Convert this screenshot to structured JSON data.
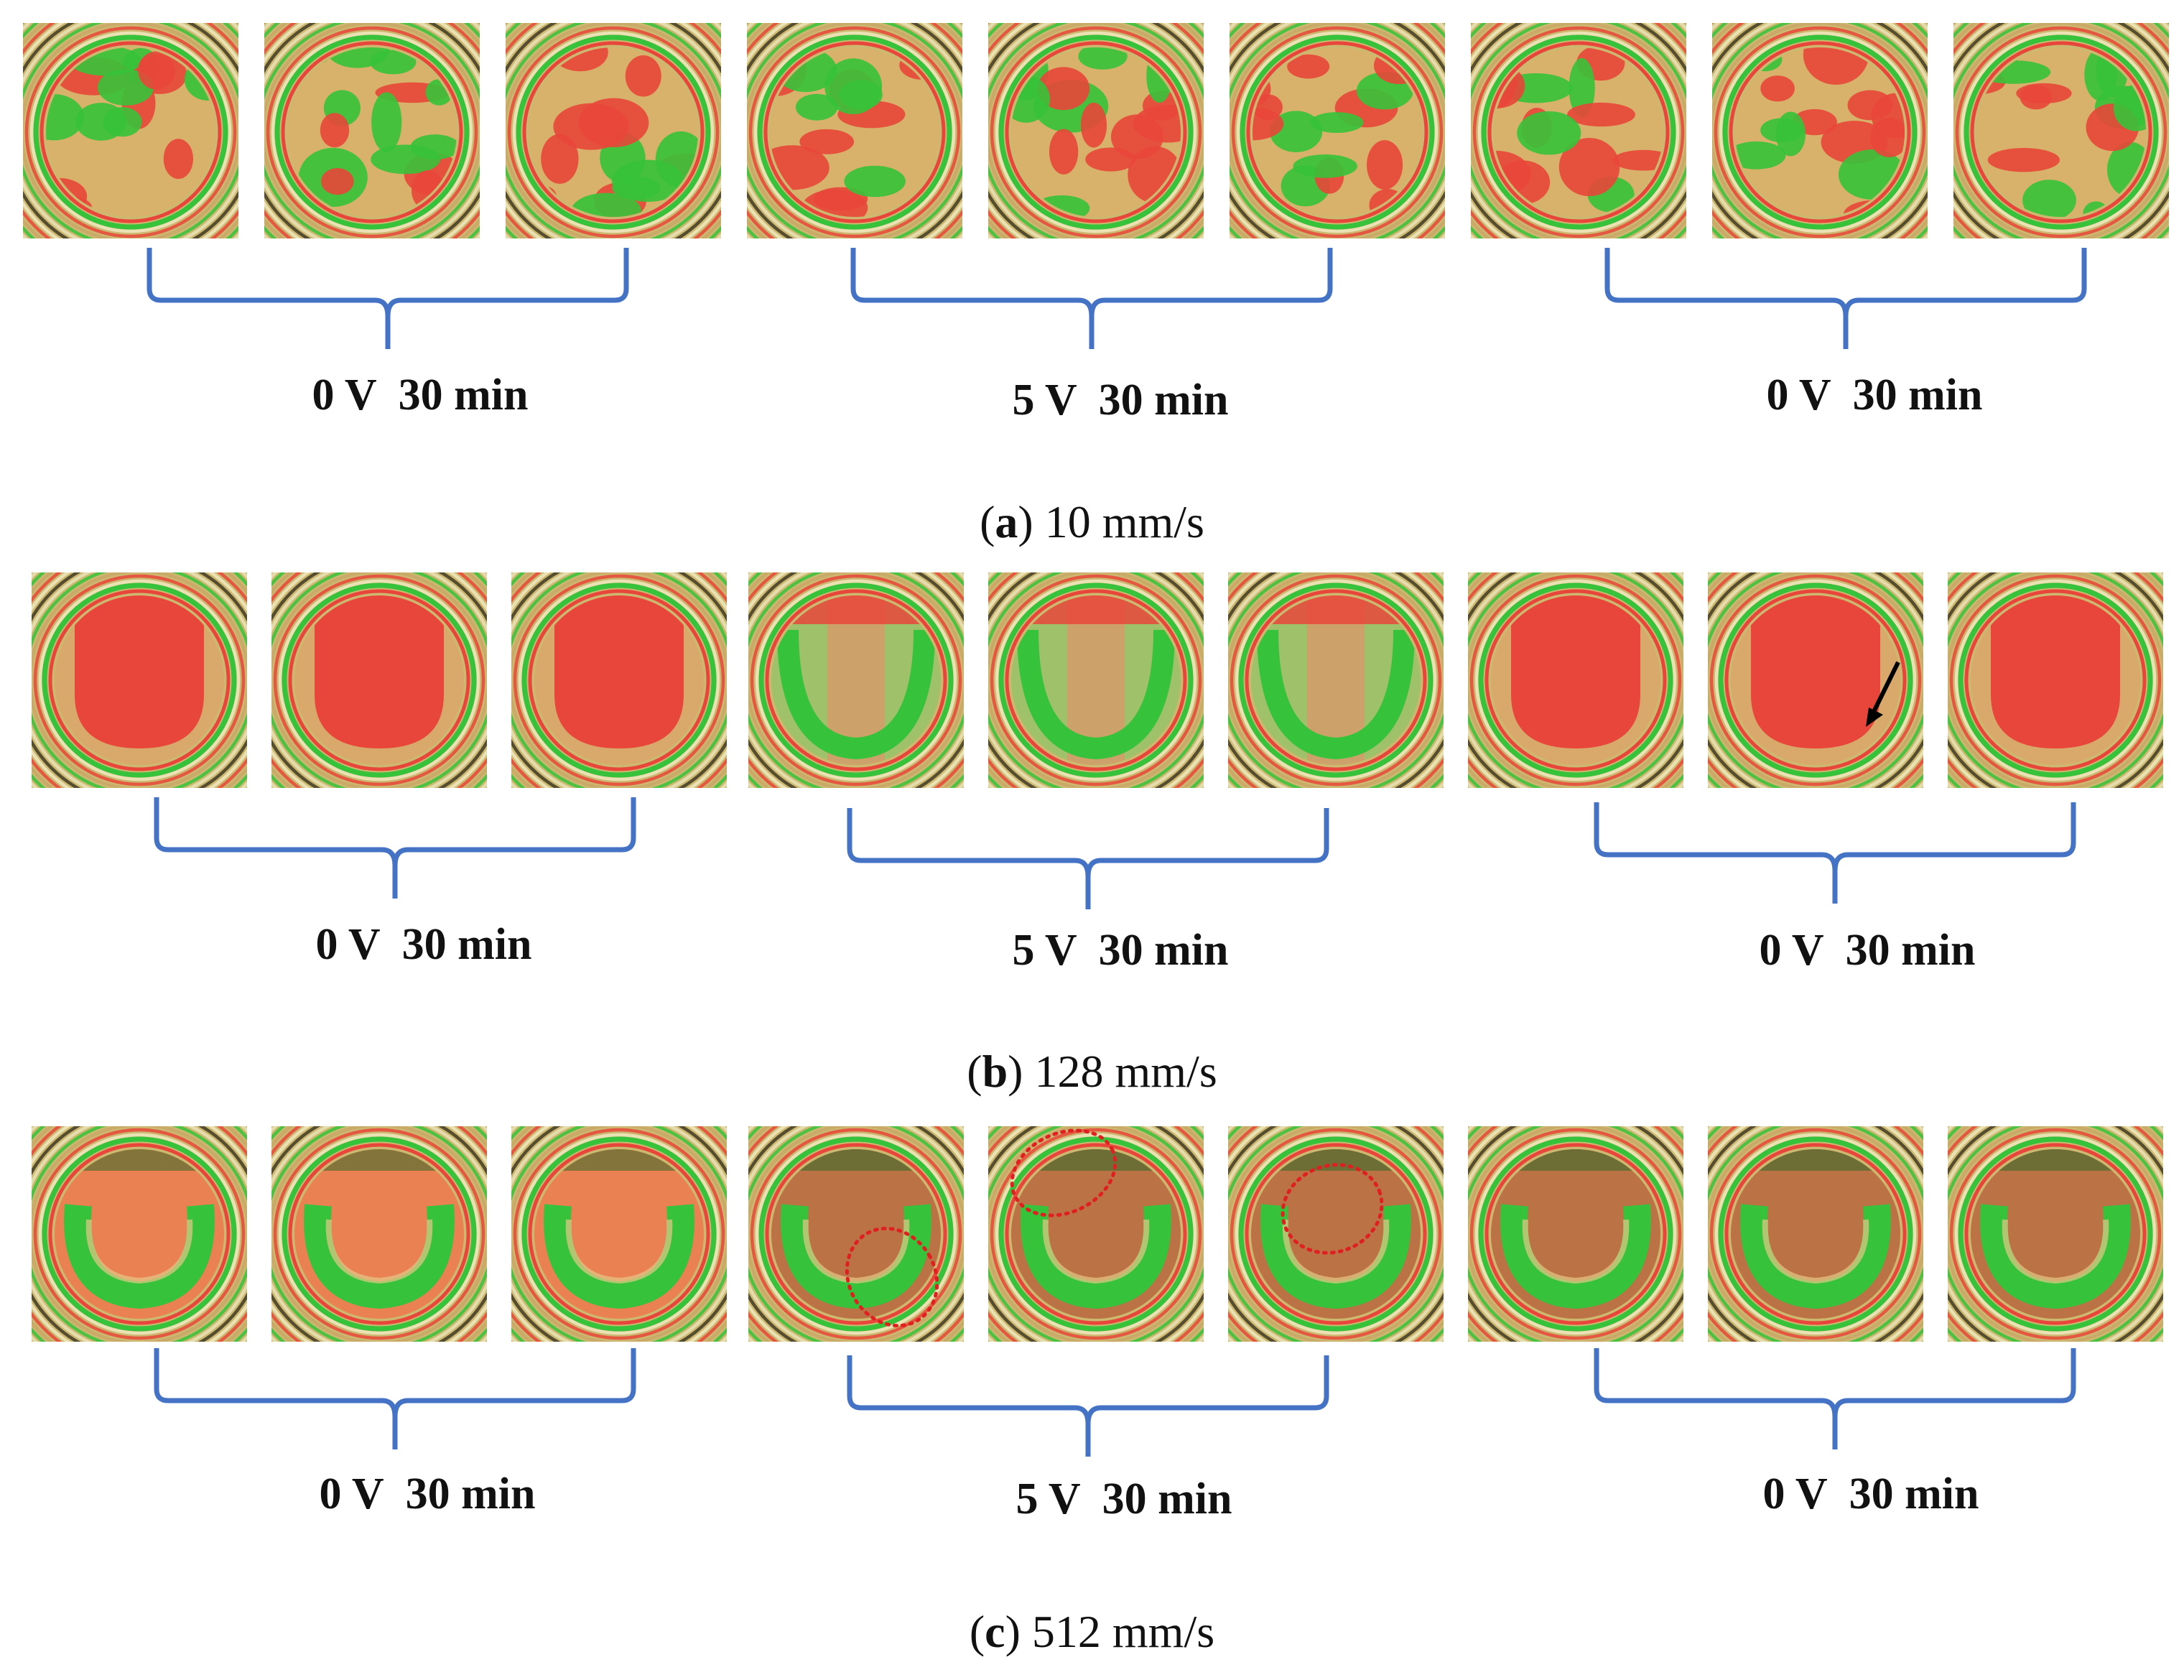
{
  "panels": [
    {
      "id": "a",
      "caption_letter": "a",
      "caption_text": " 10 mm/s",
      "groups": [
        {
          "label": "0 V  30 min"
        },
        {
          "label": "5 V  30 min"
        },
        {
          "label": "0 V  30 min"
        }
      ]
    },
    {
      "id": "b",
      "caption_letter": "b",
      "caption_text": " 128 mm/s",
      "groups": [
        {
          "label": "0 V  30 min"
        },
        {
          "label": "5 V  30 min"
        },
        {
          "label": "0 V  30 min"
        }
      ]
    },
    {
      "id": "c",
      "caption_letter": "c",
      "caption_text": " 512 mm/s",
      "groups": [
        {
          "label": "0 V  30 min"
        },
        {
          "label": "5 V  30 min"
        },
        {
          "label": "0 V  30 min"
        }
      ]
    }
  ],
  "colors": {
    "brace": "#4472c4",
    "fringe_red": "#e8463a",
    "fringe_green": "#36c23a",
    "fringe_tan": "#c9b36a",
    "highlight_ellipse": "#e02020"
  }
}
